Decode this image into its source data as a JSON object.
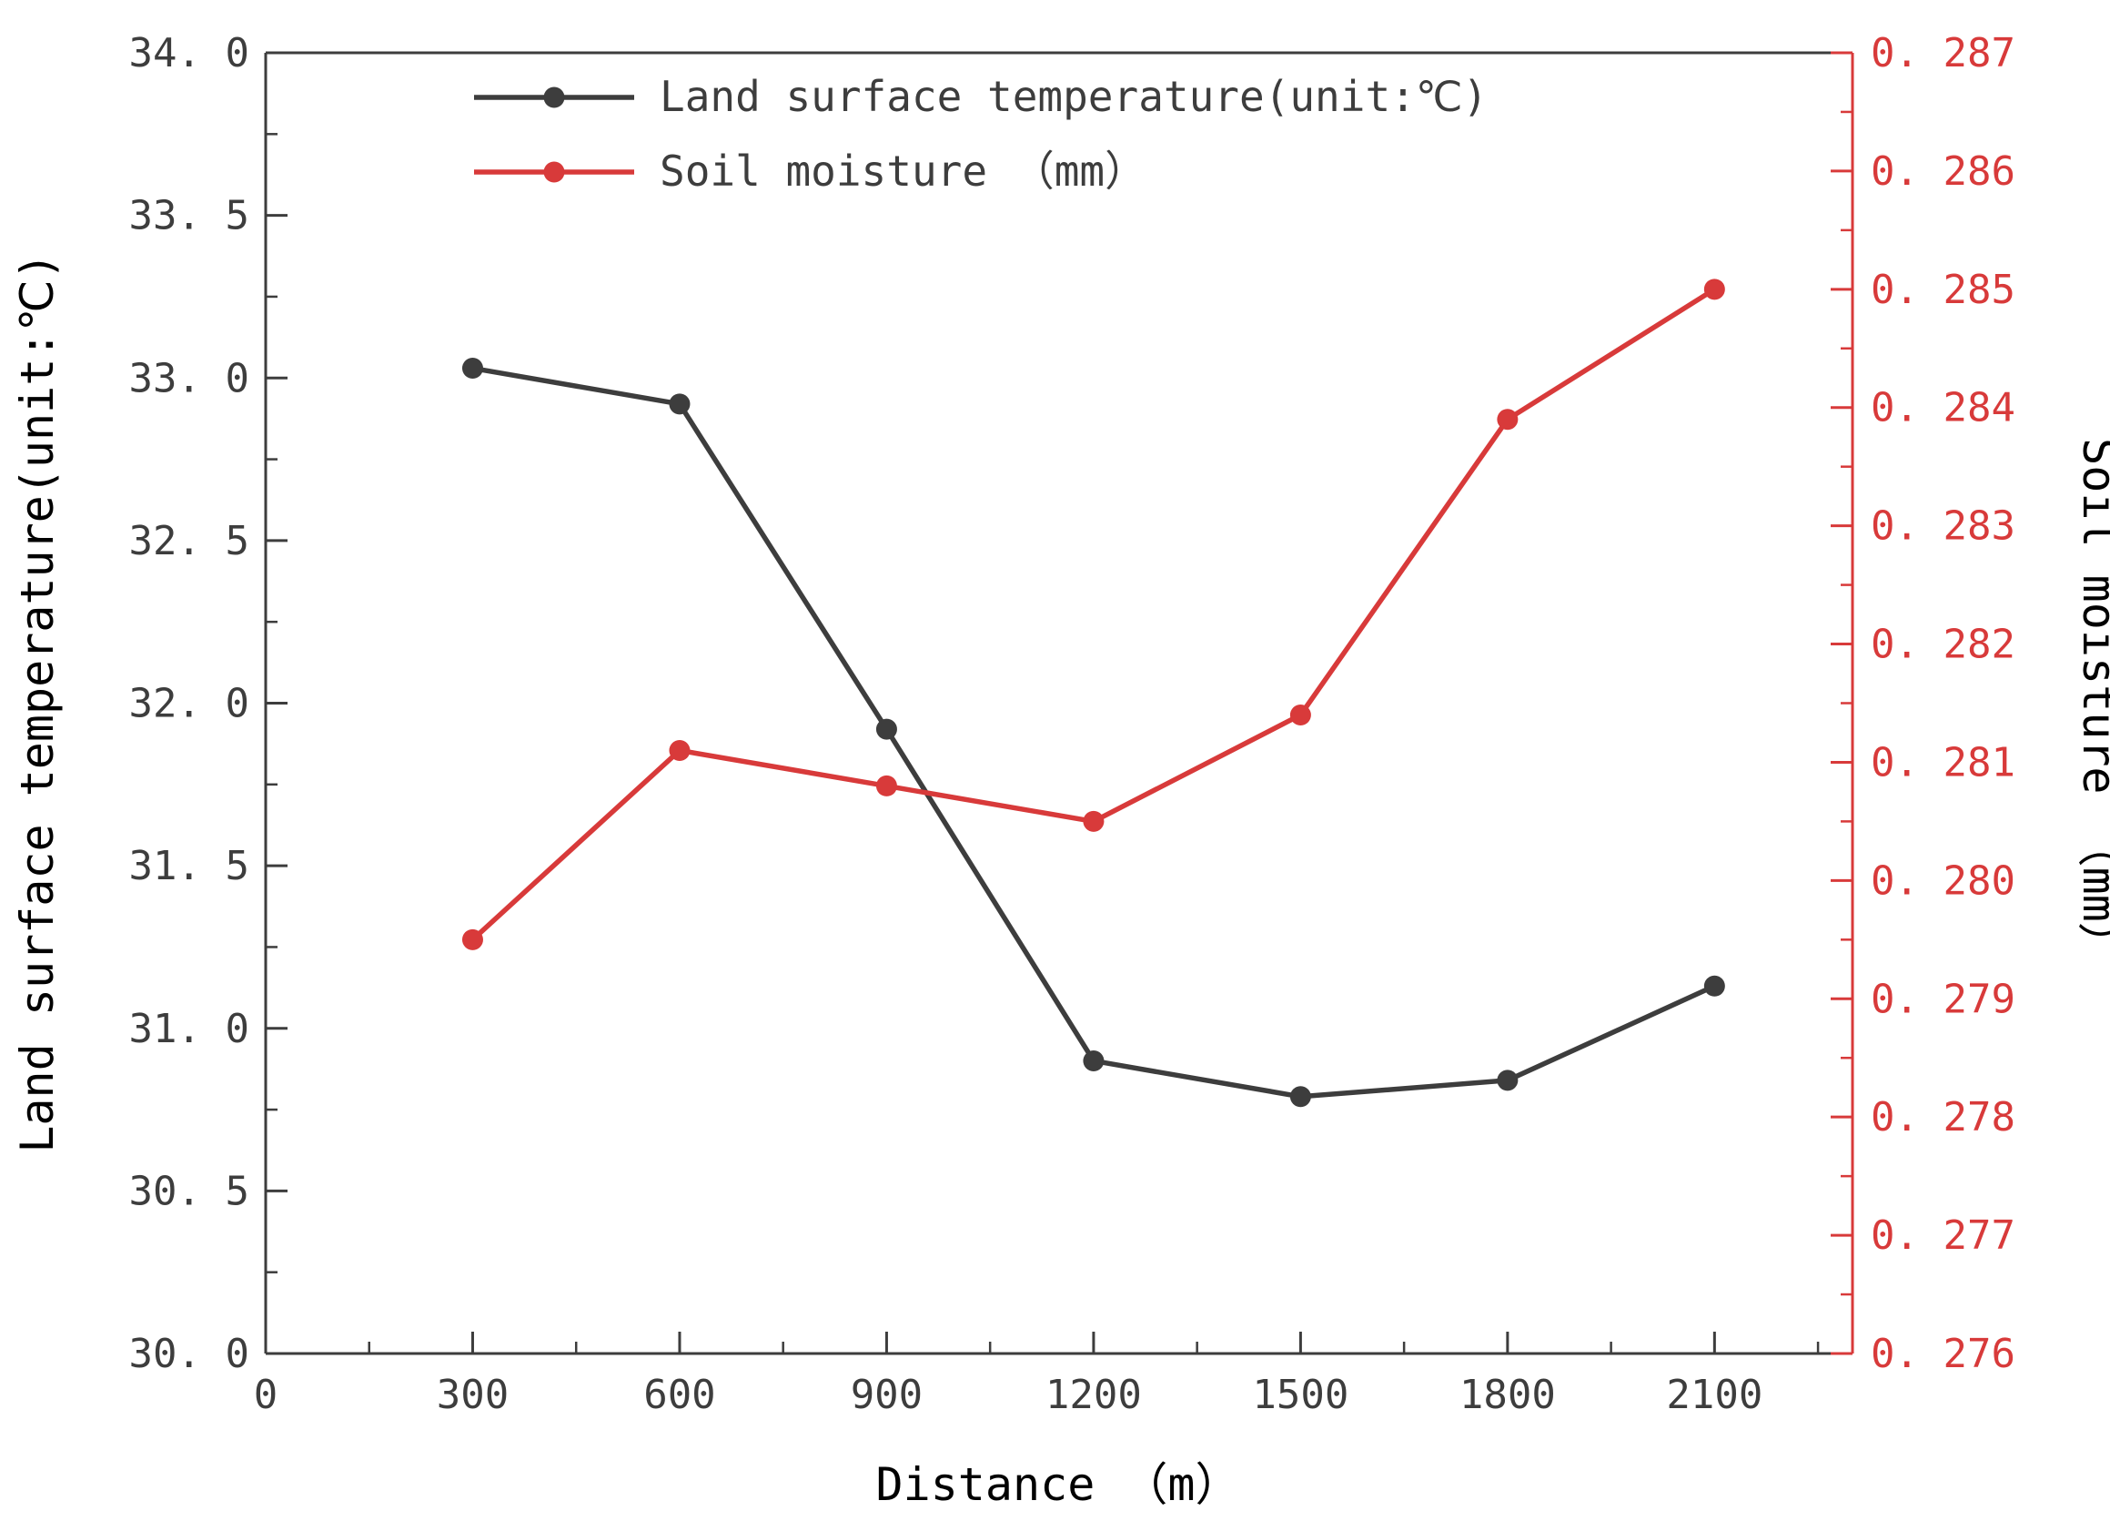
{
  "colors": {
    "axis_dark": "#3d3d3d",
    "axis_red": "#d83a3a",
    "background": "#ffffff"
  },
  "chart_data": {
    "type": "line",
    "title": "",
    "xlabel": "Distance （m）",
    "ylabel_left": "Land surface temperature(unit:℃)",
    "ylabel_right": "Soil moisture （mm）",
    "x": [
      300,
      600,
      900,
      1200,
      1500,
      1800,
      2100
    ],
    "series": [
      {
        "name": "Land surface temperature(unit:℃)",
        "axis": "left",
        "color": "#3d3d3d",
        "marker": "circle",
        "values": [
          33.03,
          32.92,
          31.92,
          30.9,
          30.79,
          30.84,
          31.13
        ]
      },
      {
        "name": "Soil moisture （mm）",
        "axis": "right",
        "color": "#d83a3a",
        "marker": "circle",
        "values": [
          0.2795,
          0.2811,
          0.2808,
          0.2805,
          0.2814,
          0.2839,
          0.285
        ]
      }
    ],
    "xlim": [
      0,
      2300
    ],
    "ylim_left": [
      30.0,
      34.0
    ],
    "ylim_right": [
      0.276,
      0.287
    ],
    "x_ticks": {
      "values": [
        0,
        300,
        600,
        900,
        1200,
        1500,
        1800,
        2100
      ],
      "labels": [
        "0",
        "300",
        "600",
        "900",
        "1200",
        "1500",
        "1800",
        "2100"
      ]
    },
    "y_ticks_left": {
      "values": [
        30.0,
        30.5,
        31.0,
        31.5,
        32.0,
        32.5,
        33.0,
        33.5,
        34.0
      ],
      "labels": [
        "30. 0",
        "30. 5",
        "31. 0",
        "31. 5",
        "32. 0",
        "32. 5",
        "33. 0",
        "33. 5",
        "34. 0"
      ]
    },
    "y_ticks_right": {
      "values": [
        0.276,
        0.277,
        0.278,
        0.279,
        0.28,
        0.281,
        0.282,
        0.283,
        0.284,
        0.285,
        0.286,
        0.287
      ],
      "labels": [
        "0. 276",
        "0. 277",
        "0. 278",
        "0. 279",
        "0. 280",
        "0. 281",
        "0. 282",
        "0. 283",
        "0. 284",
        "0. 285",
        "0. 286",
        "0. 287"
      ]
    },
    "legend": {
      "position": "top-left-inside",
      "entries": [
        "Land surface temperature(unit:℃)",
        "Soil moisture （mm）"
      ]
    },
    "grid": false
  }
}
